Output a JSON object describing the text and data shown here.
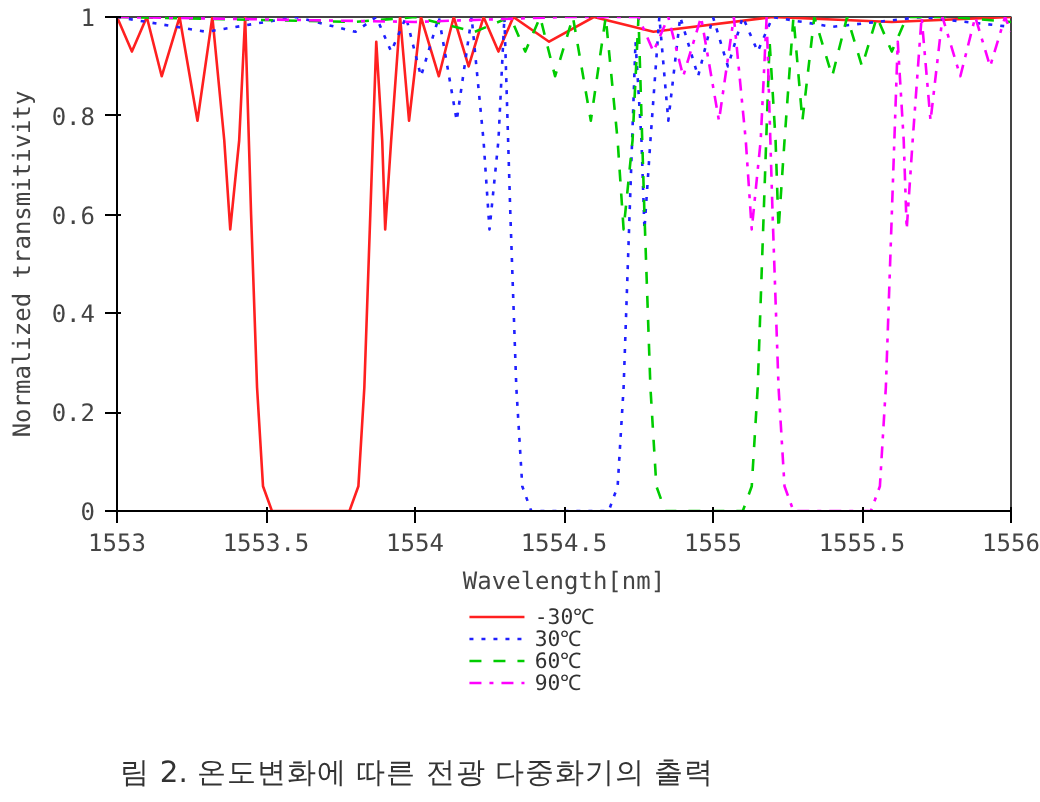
{
  "chart_data": {
    "type": "line",
    "xlabel": "Wavelength[nm]",
    "ylabel": "Normalized transmitivity",
    "xlim": [
      1553,
      1556
    ],
    "ylim": [
      0,
      1
    ],
    "xticks": [
      1553,
      1553.5,
      1554,
      1554.5,
      1555,
      1555.5,
      1556
    ],
    "yticks": [
      0,
      0.2,
      0.4,
      0.6,
      0.8,
      1
    ],
    "grid": false,
    "legend": "bottom",
    "annotations": [
      "림 2. 온도변화에 따른 전광 다중화기의 출력"
    ],
    "series": [
      {
        "name": "-30℃",
        "color": "#ff2020",
        "line_style": "solid",
        "x": [
          1553.0,
          1553.05,
          1553.1,
          1553.15,
          1553.21,
          1553.27,
          1553.32,
          1553.36,
          1553.38,
          1553.41,
          1553.43,
          1553.45,
          1553.47,
          1553.49,
          1553.52,
          1553.78,
          1553.81,
          1553.83,
          1553.85,
          1553.87,
          1553.89,
          1553.9,
          1553.92,
          1553.95,
          1553.98,
          1554.02,
          1554.08,
          1554.13,
          1554.18,
          1554.23,
          1554.28,
          1554.33,
          1554.45,
          1554.6,
          1554.8,
          1555.2,
          1555.6,
          1556.0
        ],
        "values": [
          1.0,
          0.93,
          1.0,
          0.88,
          1.0,
          0.79,
          1.0,
          0.75,
          0.57,
          0.75,
          1.0,
          0.6,
          0.25,
          0.05,
          0.0,
          0.0,
          0.05,
          0.25,
          0.6,
          0.95,
          0.75,
          0.57,
          0.75,
          1.0,
          0.79,
          1.0,
          0.88,
          1.0,
          0.9,
          1.0,
          0.93,
          1.0,
          0.95,
          1.0,
          0.97,
          1.0,
          0.99,
          1.0
        ]
      },
      {
        "name": "30℃",
        "color": "#2020ff",
        "line_style": "dotted",
        "x": [
          1553.0,
          1553.3,
          1553.6,
          1553.8,
          1553.87,
          1553.92,
          1553.97,
          1554.02,
          1554.08,
          1554.14,
          1554.19,
          1554.23,
          1554.25,
          1554.28,
          1554.3,
          1554.32,
          1554.34,
          1554.36,
          1554.39,
          1554.65,
          1554.68,
          1554.7,
          1554.72,
          1554.74,
          1554.76,
          1554.77,
          1554.79,
          1554.82,
          1554.85,
          1554.89,
          1554.95,
          1555.0,
          1555.05,
          1555.1,
          1555.15,
          1555.2,
          1555.4,
          1555.7,
          1556.0
        ],
        "values": [
          1.0,
          0.97,
          1.0,
          0.97,
          1.0,
          0.93,
          1.0,
          0.88,
          1.0,
          0.79,
          1.0,
          0.75,
          0.57,
          0.75,
          1.0,
          0.6,
          0.25,
          0.05,
          0.0,
          0.0,
          0.05,
          0.25,
          0.6,
          0.95,
          0.75,
          0.57,
          0.75,
          1.0,
          0.79,
          1.0,
          0.88,
          1.0,
          0.9,
          1.0,
          0.93,
          1.0,
          0.98,
          1.0,
          0.98
        ]
      },
      {
        "name": "60℃",
        "color": "#00cc00",
        "line_style": "dashed",
        "x": [
          1553.0,
          1553.8,
          1554.0,
          1554.2,
          1554.32,
          1554.37,
          1554.42,
          1554.47,
          1554.53,
          1554.59,
          1554.64,
          1554.68,
          1554.7,
          1554.73,
          1554.75,
          1554.77,
          1554.79,
          1554.81,
          1554.84,
          1555.1,
          1555.13,
          1555.15,
          1555.17,
          1555.19,
          1555.21,
          1555.22,
          1555.24,
          1555.27,
          1555.3,
          1555.34,
          1555.4,
          1555.45,
          1555.5,
          1555.55,
          1555.6,
          1555.65,
          1555.8,
          1556.0
        ],
        "values": [
          1.0,
          0.99,
          1.0,
          0.97,
          1.0,
          0.93,
          1.0,
          0.88,
          1.0,
          0.79,
          1.0,
          0.75,
          0.57,
          0.75,
          1.0,
          0.6,
          0.25,
          0.05,
          0.0,
          0.0,
          0.05,
          0.25,
          0.6,
          0.95,
          0.75,
          0.57,
          0.75,
          1.0,
          0.79,
          1.0,
          0.88,
          1.0,
          0.9,
          1.0,
          0.93,
          1.0,
          1.0,
          0.99
        ]
      },
      {
        "name": "90℃",
        "color": "#ff00ff",
        "line_style": "dashdot",
        "x": [
          1553.0,
          1554.0,
          1554.5,
          1554.75,
          1554.8,
          1554.85,
          1554.9,
          1554.96,
          1555.02,
          1555.07,
          1555.11,
          1555.13,
          1555.16,
          1555.18,
          1555.2,
          1555.22,
          1555.24,
          1555.27,
          1555.53,
          1555.56,
          1555.58,
          1555.6,
          1555.62,
          1555.64,
          1555.65,
          1555.67,
          1555.7,
          1555.73,
          1555.77,
          1555.83,
          1555.88,
          1555.93,
          1555.98,
          1556.0
        ],
        "values": [
          1.0,
          0.99,
          1.0,
          1.0,
          0.93,
          1.0,
          0.88,
          1.0,
          0.79,
          1.0,
          0.75,
          0.57,
          0.75,
          1.0,
          0.6,
          0.25,
          0.05,
          0.0,
          0.0,
          0.05,
          0.25,
          0.6,
          0.95,
          0.75,
          0.57,
          0.75,
          1.0,
          0.79,
          1.0,
          0.88,
          1.0,
          0.9,
          1.0,
          0.97
        ]
      }
    ]
  }
}
